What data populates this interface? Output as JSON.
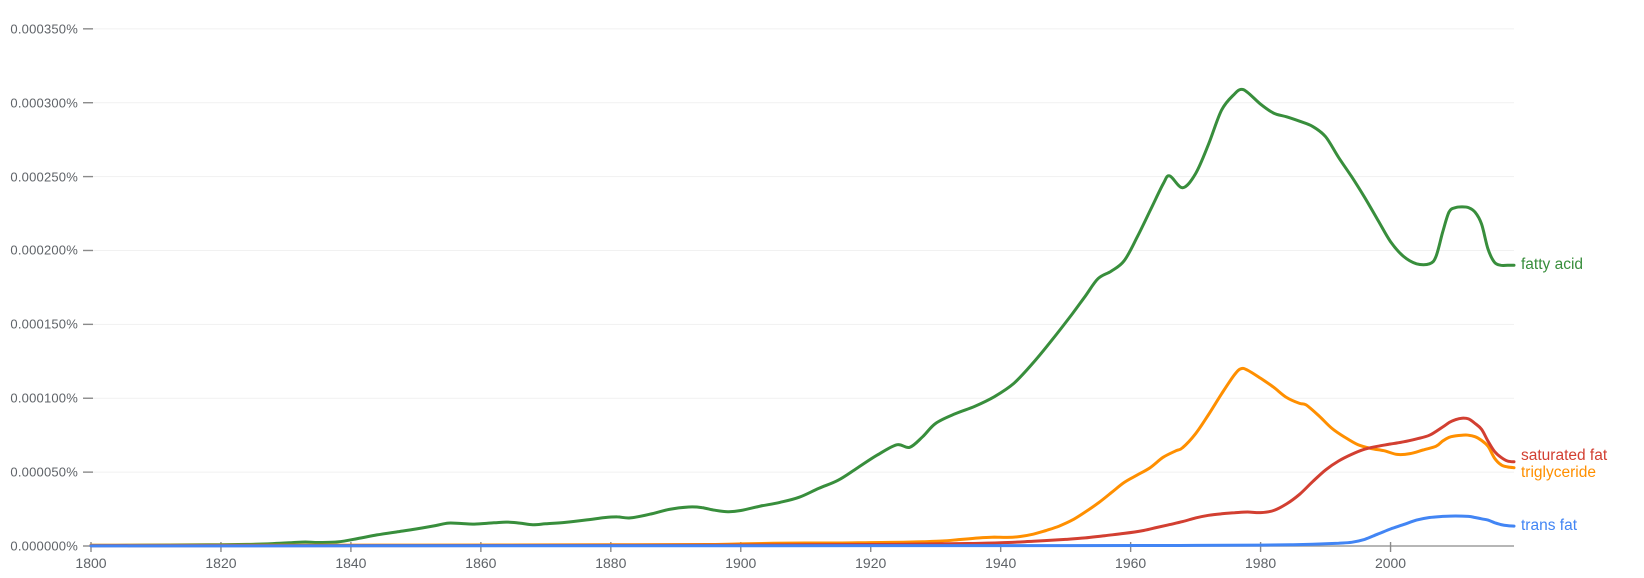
{
  "chart_data": {
    "type": "line",
    "title": "",
    "xlabel": "",
    "ylabel": "",
    "grid": true,
    "legend_position": "right-end-of-line",
    "x_range": [
      1800,
      2019
    ],
    "y_range_percent": [
      0.0,
      0.00035
    ],
    "y_unit_note": "series point values are in units of 0.000001% (frequency of ngram in corpus)",
    "x_ticks": [
      {
        "value": 1800,
        "label": "1800"
      },
      {
        "value": 1820,
        "label": "1820"
      },
      {
        "value": 1840,
        "label": "1840"
      },
      {
        "value": 1860,
        "label": "1860"
      },
      {
        "value": 1880,
        "label": "1880"
      },
      {
        "value": 1900,
        "label": "1900"
      },
      {
        "value": 1920,
        "label": "1920"
      },
      {
        "value": 1940,
        "label": "1940"
      },
      {
        "value": 1960,
        "label": "1960"
      },
      {
        "value": 1980,
        "label": "1980"
      },
      {
        "value": 2000,
        "label": "2000"
      }
    ],
    "y_ticks": [
      {
        "value": 0,
        "label": "0.000000%"
      },
      {
        "value": 50,
        "label": "0.000050%"
      },
      {
        "value": 100,
        "label": "0.000100%"
      },
      {
        "value": 150,
        "label": "0.000150%"
      },
      {
        "value": 200,
        "label": "0.000200%"
      },
      {
        "value": 250,
        "label": "0.000250%"
      },
      {
        "value": 300,
        "label": "0.000300%"
      },
      {
        "value": 350,
        "label": "0.000350%"
      }
    ],
    "colors": {
      "fatty acid": "#388e3c",
      "triglyceride": "#ff8f00",
      "saturated fat": "#d23f31",
      "trans fat": "#4285f4",
      "axis": "#9e9e9e",
      "tick": "#8a8a8a",
      "grid": "#f1f1f1",
      "axis_text": "#5f6368"
    },
    "series": [
      {
        "name": "fatty acid",
        "color": "#388e3c",
        "points": [
          [
            1800,
            0.4
          ],
          [
            1806,
            0.5
          ],
          [
            1812,
            0.7
          ],
          [
            1818,
            0.8
          ],
          [
            1824,
            1.1
          ],
          [
            1828,
            1.6
          ],
          [
            1831,
            2.3
          ],
          [
            1833,
            2.7
          ],
          [
            1835,
            2.4
          ],
          [
            1838,
            2.8
          ],
          [
            1841,
            5
          ],
          [
            1844,
            7.5
          ],
          [
            1847,
            9.5
          ],
          [
            1850,
            11.5
          ],
          [
            1853,
            13.8
          ],
          [
            1855,
            15.5
          ],
          [
            1857,
            15.2
          ],
          [
            1859,
            14.8
          ],
          [
            1862,
            15.7
          ],
          [
            1864,
            16.2
          ],
          [
            1866,
            15.5
          ],
          [
            1868,
            14.4
          ],
          [
            1870,
            15
          ],
          [
            1873,
            16
          ],
          [
            1876,
            17.5
          ],
          [
            1879,
            19.2
          ],
          [
            1881,
            19.7
          ],
          [
            1883,
            19
          ],
          [
            1886,
            21.5
          ],
          [
            1889,
            24.8
          ],
          [
            1892,
            26.4
          ],
          [
            1894,
            26
          ],
          [
            1896,
            24.2
          ],
          [
            1898,
            23.2
          ],
          [
            1900,
            24
          ],
          [
            1903,
            27
          ],
          [
            1906,
            29.5
          ],
          [
            1909,
            33
          ],
          [
            1912,
            39
          ],
          [
            1915,
            44.5
          ],
          [
            1918,
            53
          ],
          [
            1921,
            61.5
          ],
          [
            1924,
            68.5
          ],
          [
            1926,
            66.8
          ],
          [
            1928,
            74
          ],
          [
            1930,
            83
          ],
          [
            1933,
            89.5
          ],
          [
            1936,
            94.5
          ],
          [
            1939,
            101
          ],
          [
            1942,
            110
          ],
          [
            1945,
            124
          ],
          [
            1948,
            140
          ],
          [
            1951,
            157
          ],
          [
            1953,
            169
          ],
          [
            1955,
            181
          ],
          [
            1957,
            186
          ],
          [
            1959,
            193
          ],
          [
            1961,
            209
          ],
          [
            1963,
            227
          ],
          [
            1965,
            245
          ],
          [
            1966,
            250.5
          ],
          [
            1968,
            242.5
          ],
          [
            1970,
            252
          ],
          [
            1972,
            272
          ],
          [
            1974,
            295
          ],
          [
            1976,
            306
          ],
          [
            1977,
            309
          ],
          [
            1978,
            307
          ],
          [
            1980,
            299
          ],
          [
            1982,
            293
          ],
          [
            1984,
            290.5
          ],
          [
            1986,
            287.5
          ],
          [
            1988,
            284
          ],
          [
            1990,
            277
          ],
          [
            1992,
            263
          ],
          [
            1994,
            250
          ],
          [
            1996,
            236
          ],
          [
            1998,
            221
          ],
          [
            2000,
            206
          ],
          [
            2002,
            196
          ],
          [
            2004,
            191
          ],
          [
            2006,
            191
          ],
          [
            2007,
            196
          ],
          [
            2008,
            212
          ],
          [
            2009,
            226
          ],
          [
            2010,
            229
          ],
          [
            2011,
            229.5
          ],
          [
            2012,
            229
          ],
          [
            2013,
            226
          ],
          [
            2014,
            218
          ],
          [
            2015,
            201
          ],
          [
            2016,
            192
          ],
          [
            2017,
            190
          ],
          [
            2018,
            190
          ],
          [
            2019,
            190
          ]
        ]
      },
      {
        "name": "triglyceride",
        "color": "#ff8f00",
        "points": [
          [
            1800,
            0.5
          ],
          [
            1850,
            0.6
          ],
          [
            1880,
            0.8
          ],
          [
            1895,
            1
          ],
          [
            1900,
            1.4
          ],
          [
            1905,
            1.8
          ],
          [
            1910,
            2
          ],
          [
            1915,
            2
          ],
          [
            1920,
            2.3
          ],
          [
            1925,
            2.6
          ],
          [
            1928,
            2.9
          ],
          [
            1931,
            3.4
          ],
          [
            1934,
            4.5
          ],
          [
            1937,
            5.6
          ],
          [
            1939,
            6
          ],
          [
            1941,
            5.8
          ],
          [
            1943,
            6.4
          ],
          [
            1945,
            8
          ],
          [
            1947,
            10.5
          ],
          [
            1949,
            13.5
          ],
          [
            1951,
            17.5
          ],
          [
            1953,
            23
          ],
          [
            1955,
            29
          ],
          [
            1957,
            36
          ],
          [
            1959,
            43
          ],
          [
            1961,
            48
          ],
          [
            1963,
            53
          ],
          [
            1965,
            60
          ],
          [
            1967,
            64.5
          ],
          [
            1968,
            66.5
          ],
          [
            1970,
            76
          ],
          [
            1972,
            89
          ],
          [
            1974,
            103
          ],
          [
            1976,
            116
          ],
          [
            1977,
            120
          ],
          [
            1978,
            119
          ],
          [
            1980,
            113.5
          ],
          [
            1982,
            107.5
          ],
          [
            1984,
            100.5
          ],
          [
            1986,
            96.5
          ],
          [
            1987,
            95.5
          ],
          [
            1989,
            88
          ],
          [
            1991,
            79.5
          ],
          [
            1993,
            73.5
          ],
          [
            1995,
            68.5
          ],
          [
            1997,
            66
          ],
          [
            1999,
            64.5
          ],
          [
            2001,
            62
          ],
          [
            2003,
            62.5
          ],
          [
            2005,
            65
          ],
          [
            2007,
            67.5
          ],
          [
            2008,
            71
          ],
          [
            2009,
            73.5
          ],
          [
            2010,
            74.5
          ],
          [
            2011,
            75
          ],
          [
            2012,
            75
          ],
          [
            2013,
            74
          ],
          [
            2014,
            71.5
          ],
          [
            2015,
            67.5
          ],
          [
            2016,
            59.5
          ],
          [
            2017,
            55
          ],
          [
            2018,
            53.5
          ],
          [
            2019,
            53
          ]
        ]
      },
      {
        "name": "saturated fat",
        "color": "#d23f31",
        "points": [
          [
            1800,
            0.2
          ],
          [
            1850,
            0.3
          ],
          [
            1880,
            0.4
          ],
          [
            1900,
            0.6
          ],
          [
            1910,
            0.8
          ],
          [
            1920,
            1
          ],
          [
            1930,
            1.4
          ],
          [
            1935,
            1.7
          ],
          [
            1940,
            2.2
          ],
          [
            1945,
            3.2
          ],
          [
            1950,
            4.5
          ],
          [
            1953,
            5.5
          ],
          [
            1956,
            7
          ],
          [
            1959,
            8.5
          ],
          [
            1962,
            10.5
          ],
          [
            1964,
            12.5
          ],
          [
            1966,
            14.5
          ],
          [
            1968,
            16.5
          ],
          [
            1970,
            19
          ],
          [
            1972,
            20.8
          ],
          [
            1974,
            21.8
          ],
          [
            1976,
            22.5
          ],
          [
            1978,
            23
          ],
          [
            1980,
            22.6
          ],
          [
            1982,
            24
          ],
          [
            1984,
            28.5
          ],
          [
            1986,
            35
          ],
          [
            1988,
            43.5
          ],
          [
            1990,
            51.5
          ],
          [
            1992,
            57.5
          ],
          [
            1994,
            62
          ],
          [
            1996,
            65.5
          ],
          [
            1998,
            67.5
          ],
          [
            2000,
            69
          ],
          [
            2002,
            70.5
          ],
          [
            2004,
            72.5
          ],
          [
            2006,
            75
          ],
          [
            2008,
            80.5
          ],
          [
            2009,
            83.5
          ],
          [
            2010,
            85.5
          ],
          [
            2011,
            86.5
          ],
          [
            2012,
            86
          ],
          [
            2013,
            83
          ],
          [
            2014,
            79
          ],
          [
            2015,
            71
          ],
          [
            2016,
            64
          ],
          [
            2017,
            60
          ],
          [
            2018,
            57.5
          ],
          [
            2019,
            57
          ]
        ]
      },
      {
        "name": "trans fat",
        "color": "#4285f4",
        "points": [
          [
            1800,
            0.1
          ],
          [
            1900,
            0.2
          ],
          [
            1950,
            0.3
          ],
          [
            1970,
            0.4
          ],
          [
            1980,
            0.6
          ],
          [
            1985,
            0.9
          ],
          [
            1988,
            1.2
          ],
          [
            1990,
            1.5
          ],
          [
            1992,
            1.9
          ],
          [
            1994,
            2.5
          ],
          [
            1996,
            4.5
          ],
          [
            1998,
            8
          ],
          [
            2000,
            11.5
          ],
          [
            2002,
            14.5
          ],
          [
            2004,
            17.5
          ],
          [
            2006,
            19.3
          ],
          [
            2008,
            20
          ],
          [
            2010,
            20.3
          ],
          [
            2012,
            20
          ],
          [
            2013,
            19.3
          ],
          [
            2014,
            18.4
          ],
          [
            2015,
            17.5
          ],
          [
            2016,
            15.8
          ],
          [
            2017,
            14.5
          ],
          [
            2018,
            13.8
          ],
          [
            2019,
            13.5
          ]
        ]
      }
    ]
  }
}
